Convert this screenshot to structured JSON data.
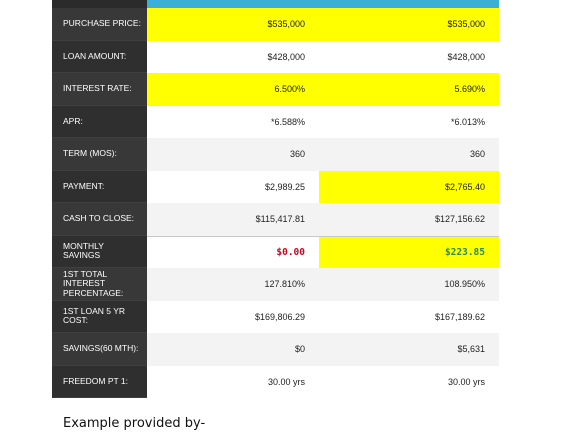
{
  "table": {
    "rows": [
      {
        "label": "PURCHASE PRICE:",
        "v1": "$535,000",
        "v2": "$535,000"
      },
      {
        "label": "LOAN AMOUNT:",
        "v1": "$428,000",
        "v2": "$428,000"
      },
      {
        "label": "INTEREST RATE:",
        "v1": "6.500%",
        "v2": "5.690%"
      },
      {
        "label": "APR:",
        "v1": "*6.588%",
        "v2": "*6.013%"
      },
      {
        "label": "TERM (MOS):",
        "v1": "360",
        "v2": "360"
      },
      {
        "label": "PAYMENT:",
        "v1": "$2,989.25",
        "v2": "$2,765.40"
      },
      {
        "label": "CASH TO CLOSE:",
        "v1": "$115,417.81",
        "v2": "$127,156.62"
      },
      {
        "label": "MONTHLY SAVINGS",
        "v1": "$0.00",
        "v2": "$223.85"
      },
      {
        "label": "1ST TOTAL INTEREST PERCENTAGE:",
        "v1": "127.810%",
        "v2": "108.950%"
      },
      {
        "label": "1ST LOAN 5 YR COST:",
        "v1": "$169,806.29",
        "v2": "$167,189.62"
      },
      {
        "label": "SAVINGS(60 MTH):",
        "v1": "$0",
        "v2": "$5,631"
      },
      {
        "label": "FREEDOM PT 1:",
        "v1": "30.00 yrs",
        "v2": "30.00 yrs"
      }
    ]
  },
  "colors": {
    "highlight": "#ffff00",
    "header_bar": "#3ab0d8",
    "label_bg": "#2f2f2f",
    "negative": "#d0021b",
    "positive": "#2e8b57"
  },
  "footer": {
    "text": "Example provided  by-"
  }
}
